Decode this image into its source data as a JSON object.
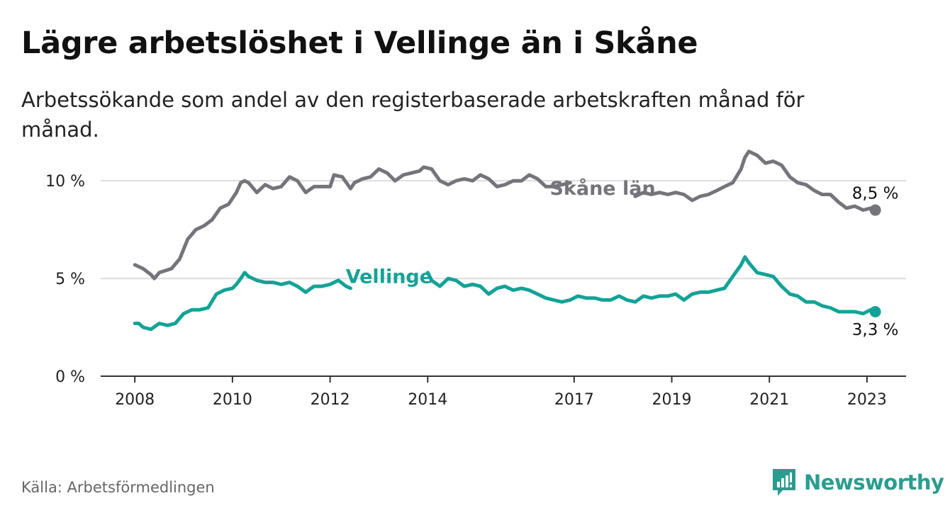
{
  "title": "Lägre arbetslöshet i Vellinge än i Skåne",
  "subtitle": "Arbetssökande som andel av den registerbaserade arbetskraften månad för månad.",
  "source": "Källa: Arbetsförmedlingen",
  "brand": {
    "name": "Newsworthy",
    "icon": "newsworthy-logo-icon",
    "color": "#2a9d8f"
  },
  "colors": {
    "skane": "#76747b",
    "vellinge": "#13a396",
    "grid": "#dddddd",
    "axis": "#333333"
  },
  "chart_data": {
    "type": "line",
    "x_unit": "year (decimal)",
    "xlim": [
      2007.3,
      2023.8
    ],
    "ylim": [
      0,
      12
    ],
    "y_ticks": [
      0,
      5,
      10
    ],
    "y_tick_labels": [
      "0 %",
      "5 %",
      "10 %"
    ],
    "x_ticks": [
      2008,
      2010,
      2012,
      2014,
      2017,
      2019,
      2021,
      2023
    ],
    "x_tick_labels": [
      "2008",
      "2010",
      "2012",
      "2014",
      "2017",
      "2019",
      "2021",
      "2023"
    ],
    "series": [
      {
        "name": "Skåne län",
        "label": "Skåne län",
        "end_label": "8,5 %",
        "end_value": 8.5,
        "points": [
          [
            2008.0,
            5.7
          ],
          [
            2008.17,
            5.5
          ],
          [
            2008.33,
            5.2
          ],
          [
            2008.4,
            5.0
          ],
          [
            2008.5,
            5.3
          ],
          [
            2008.75,
            5.5
          ],
          [
            2008.92,
            6.0
          ],
          [
            2009.08,
            7.0
          ],
          [
            2009.25,
            7.5
          ],
          [
            2009.42,
            7.7
          ],
          [
            2009.58,
            8.0
          ],
          [
            2009.75,
            8.6
          ],
          [
            2009.92,
            8.8
          ],
          [
            2010.08,
            9.4
          ],
          [
            2010.17,
            9.9
          ],
          [
            2010.25,
            10.0
          ],
          [
            2010.33,
            9.9
          ],
          [
            2010.5,
            9.4
          ],
          [
            2010.67,
            9.8
          ],
          [
            2010.83,
            9.6
          ],
          [
            2011.0,
            9.7
          ],
          [
            2011.17,
            10.2
          ],
          [
            2011.33,
            10.0
          ],
          [
            2011.5,
            9.4
          ],
          [
            2011.67,
            9.7
          ],
          [
            2011.83,
            9.7
          ],
          [
            2012.0,
            9.7
          ],
          [
            2012.08,
            10.3
          ],
          [
            2012.25,
            10.2
          ],
          [
            2012.42,
            9.6
          ],
          [
            2012.5,
            9.9
          ],
          [
            2012.67,
            10.1
          ],
          [
            2012.83,
            10.2
          ],
          [
            2013.0,
            10.6
          ],
          [
            2013.17,
            10.4
          ],
          [
            2013.33,
            10.0
          ],
          [
            2013.5,
            10.3
          ],
          [
            2013.67,
            10.4
          ],
          [
            2013.83,
            10.5
          ],
          [
            2013.92,
            10.7
          ],
          [
            2014.08,
            10.6
          ],
          [
            2014.25,
            10.0
          ],
          [
            2014.42,
            9.8
          ],
          [
            2014.58,
            10.0
          ],
          [
            2014.75,
            10.1
          ],
          [
            2014.92,
            10.0
          ],
          [
            2015.08,
            10.3
          ],
          [
            2015.25,
            10.1
          ],
          [
            2015.42,
            9.7
          ],
          [
            2015.58,
            9.8
          ],
          [
            2015.75,
            10.0
          ],
          [
            2015.92,
            10.0
          ],
          [
            2016.08,
            10.3
          ],
          [
            2016.25,
            10.1
          ],
          [
            2016.42,
            9.7
          ],
          [
            2016.58,
            9.7
          ],
          [
            2016.75,
            9.8
          ],
          [
            2016.92,
            9.9
          ]
        ]
      },
      {
        "name": "Skåne län (efter etikett)",
        "points": [
          [
            2018.25,
            9.2
          ],
          [
            2018.42,
            9.4
          ],
          [
            2018.58,
            9.3
          ],
          [
            2018.75,
            9.4
          ],
          [
            2018.92,
            9.3
          ],
          [
            2019.08,
            9.4
          ],
          [
            2019.25,
            9.3
          ],
          [
            2019.42,
            9.0
          ],
          [
            2019.58,
            9.2
          ],
          [
            2019.75,
            9.3
          ],
          [
            2019.92,
            9.5
          ],
          [
            2020.08,
            9.7
          ],
          [
            2020.25,
            9.9
          ],
          [
            2020.42,
            10.6
          ],
          [
            2020.5,
            11.2
          ],
          [
            2020.58,
            11.5
          ],
          [
            2020.75,
            11.3
          ],
          [
            2020.92,
            10.9
          ],
          [
            2021.08,
            11.0
          ],
          [
            2021.25,
            10.8
          ],
          [
            2021.42,
            10.2
          ],
          [
            2021.58,
            9.9
          ],
          [
            2021.75,
            9.8
          ],
          [
            2021.92,
            9.5
          ],
          [
            2022.08,
            9.3
          ],
          [
            2022.25,
            9.3
          ],
          [
            2022.42,
            8.9
          ],
          [
            2022.58,
            8.6
          ],
          [
            2022.75,
            8.7
          ],
          [
            2022.92,
            8.5
          ],
          [
            2023.08,
            8.6
          ],
          [
            2023.17,
            8.5
          ]
        ]
      },
      {
        "name": "Vellinge",
        "label": "Vellinge",
        "end_label": "3,3 %",
        "end_value": 3.3,
        "points": [
          [
            2008.0,
            2.7
          ],
          [
            2008.08,
            2.7
          ],
          [
            2008.17,
            2.5
          ],
          [
            2008.33,
            2.4
          ],
          [
            2008.5,
            2.7
          ],
          [
            2008.67,
            2.6
          ],
          [
            2008.83,
            2.7
          ],
          [
            2009.0,
            3.2
          ],
          [
            2009.17,
            3.4
          ],
          [
            2009.33,
            3.4
          ],
          [
            2009.5,
            3.5
          ],
          [
            2009.67,
            4.2
          ],
          [
            2009.83,
            4.4
          ],
          [
            2010.0,
            4.5
          ],
          [
            2010.08,
            4.7
          ],
          [
            2010.17,
            5.0
          ],
          [
            2010.25,
            5.3
          ],
          [
            2010.33,
            5.1
          ],
          [
            2010.5,
            4.9
          ],
          [
            2010.67,
            4.8
          ],
          [
            2010.83,
            4.8
          ],
          [
            2011.0,
            4.7
          ],
          [
            2011.17,
            4.8
          ],
          [
            2011.33,
            4.6
          ],
          [
            2011.5,
            4.3
          ],
          [
            2011.67,
            4.6
          ],
          [
            2011.83,
            4.6
          ],
          [
            2012.0,
            4.7
          ],
          [
            2012.17,
            4.9
          ],
          [
            2012.33,
            4.6
          ],
          [
            2012.42,
            4.5
          ]
        ]
      },
      {
        "name": "Vellinge (efter etikett)",
        "points": [
          [
            2014.0,
            5.3
          ],
          [
            2014.08,
            4.9
          ],
          [
            2014.25,
            4.6
          ],
          [
            2014.42,
            5.0
          ],
          [
            2014.58,
            4.9
          ],
          [
            2014.75,
            4.6
          ],
          [
            2014.92,
            4.7
          ],
          [
            2015.08,
            4.6
          ],
          [
            2015.25,
            4.2
          ],
          [
            2015.42,
            4.5
          ],
          [
            2015.58,
            4.6
          ],
          [
            2015.75,
            4.4
          ],
          [
            2015.92,
            4.5
          ],
          [
            2016.08,
            4.4
          ],
          [
            2016.25,
            4.2
          ],
          [
            2016.42,
            4.0
          ],
          [
            2016.58,
            3.9
          ],
          [
            2016.75,
            3.8
          ],
          [
            2016.92,
            3.9
          ],
          [
            2017.08,
            4.1
          ],
          [
            2017.25,
            4.0
          ],
          [
            2017.42,
            4.0
          ],
          [
            2017.58,
            3.9
          ],
          [
            2017.75,
            3.9
          ],
          [
            2017.92,
            4.1
          ],
          [
            2018.08,
            3.9
          ],
          [
            2018.25,
            3.8
          ],
          [
            2018.42,
            4.1
          ],
          [
            2018.58,
            4.0
          ],
          [
            2018.75,
            4.1
          ],
          [
            2018.92,
            4.1
          ],
          [
            2019.08,
            4.2
          ],
          [
            2019.25,
            3.9
          ],
          [
            2019.42,
            4.2
          ],
          [
            2019.58,
            4.3
          ],
          [
            2019.75,
            4.3
          ],
          [
            2019.92,
            4.4
          ],
          [
            2020.08,
            4.5
          ],
          [
            2020.25,
            5.1
          ],
          [
            2020.42,
            5.7
          ],
          [
            2020.5,
            6.1
          ],
          [
            2020.58,
            5.8
          ],
          [
            2020.75,
            5.3
          ],
          [
            2020.92,
            5.2
          ],
          [
            2021.08,
            5.1
          ],
          [
            2021.25,
            4.6
          ],
          [
            2021.42,
            4.2
          ],
          [
            2021.58,
            4.1
          ],
          [
            2021.75,
            3.8
          ],
          [
            2021.92,
            3.8
          ],
          [
            2022.08,
            3.6
          ],
          [
            2022.25,
            3.5
          ],
          [
            2022.42,
            3.3
          ],
          [
            2022.58,
            3.3
          ],
          [
            2022.75,
            3.3
          ],
          [
            2022.92,
            3.2
          ],
          [
            2023.08,
            3.4
          ],
          [
            2023.17,
            3.3
          ]
        ]
      }
    ]
  }
}
